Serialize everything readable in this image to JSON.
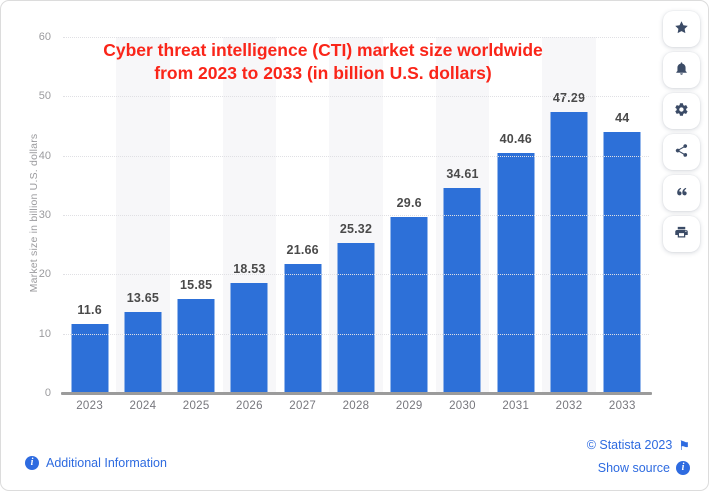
{
  "chart_data": {
    "type": "bar",
    "title": "Cyber threat intelligence (CTI) market size worldwide from 2023 to 2033 (in billion U.S. dollars)",
    "title_line1": "Cyber threat intelligence (CTI) market size worldwide",
    "title_line2": "from 2023 to 2033 (in billion U.S. dollars)",
    "categories": [
      "2023",
      "2024",
      "2025",
      "2026",
      "2027",
      "2028",
      "2029",
      "2030",
      "2031",
      "2032",
      "2033"
    ],
    "values": [
      11.6,
      13.65,
      15.85,
      18.53,
      21.66,
      25.32,
      29.6,
      34.61,
      40.46,
      47.29,
      44
    ],
    "value_labels": [
      "11.6",
      "13.65",
      "15.85",
      "18.53",
      "21.66",
      "25.32",
      "29.6",
      "34.61",
      "40.46",
      "47.29",
      "44"
    ],
    "xlabel": "",
    "ylabel": "Market size in billion U.S. dollars",
    "ylim": [
      0,
      60
    ],
    "yticks": [
      0,
      10,
      20,
      30,
      40,
      50,
      60
    ],
    "grid": "horizontal dotted, alternating light column stripes",
    "legend": "none",
    "bar_color": "#2d70d8",
    "title_color": "#fa2519",
    "stripe_color": "#f7f7f9"
  },
  "toolbar": {
    "icons": [
      "star-icon",
      "bell-icon",
      "gear-icon",
      "share-icon",
      "quote-icon",
      "printer-icon"
    ]
  },
  "footer": {
    "additional_information": "Additional Information",
    "copyright": "© Statista 2023",
    "show_source": "Show source",
    "link_color": "#2e6be0",
    "icons": [
      "info-icon",
      "flag-icon",
      "info-icon"
    ]
  }
}
